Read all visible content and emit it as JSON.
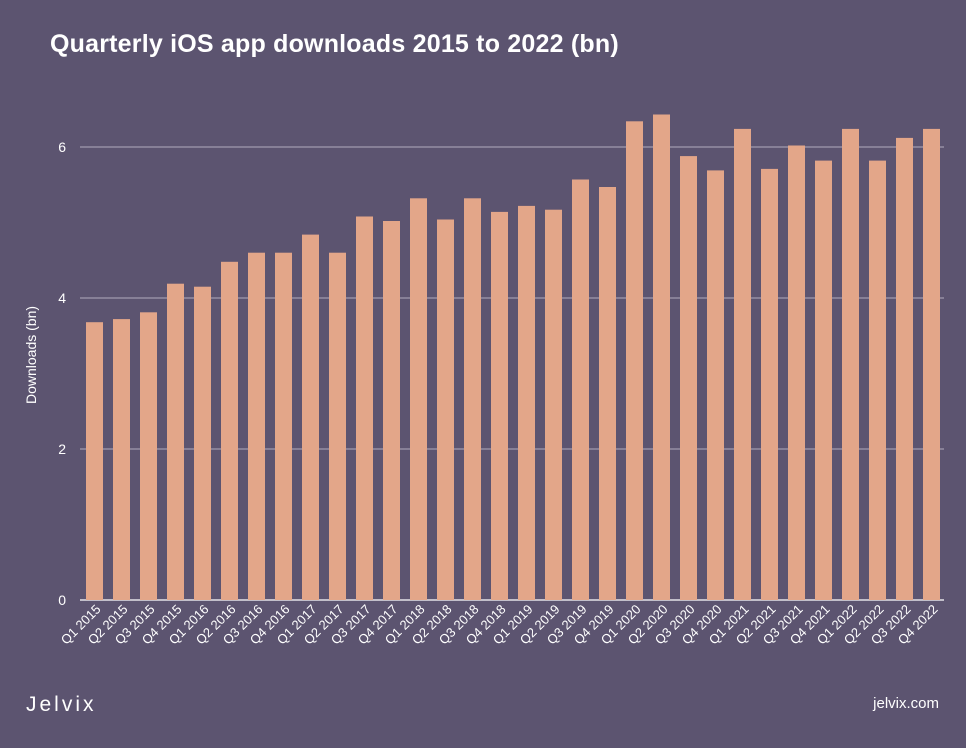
{
  "title": "Quarterly iOS app downloads 2015 to 2022 (bn)",
  "footer": {
    "brand": "Jelvix",
    "website": "jelvix.com"
  },
  "colors": {
    "background": "#5c5470",
    "bar": "#e3a689",
    "grid": "#cfc8d8",
    "text": "#ffffff"
  },
  "chart_data": {
    "type": "bar",
    "title": "Quarterly iOS app downloads 2015 to 2022 (bn)",
    "xlabel": "",
    "ylabel": "Downloads (bn)",
    "ylim": [
      0,
      6.8
    ],
    "yticks": [
      0,
      2,
      4,
      6
    ],
    "grid": true,
    "categories": [
      "Q1 2015",
      "Q2 2015",
      "Q3 2015",
      "Q4 2015",
      "Q1 2016",
      "Q2 2016",
      "Q3 2016",
      "Q4 2016",
      "Q1 2017",
      "Q2 2017",
      "Q3 2017",
      "Q4 2017",
      "Q1 2018",
      "Q2 2018",
      "Q3 2018",
      "Q4 2018",
      "Q1 2019",
      "Q2 2019",
      "Q3 2019",
      "Q4 2019",
      "Q1 2020",
      "Q2 2020",
      "Q3 2020",
      "Q4 2020",
      "Q1 2021",
      "Q2 2021",
      "Q3 2021",
      "Q4 2021",
      "Q1 2022",
      "Q2 2022",
      "Q3 2022",
      "Q4 2022"
    ],
    "values": [
      3.68,
      3.72,
      3.81,
      4.19,
      4.15,
      4.48,
      4.6,
      4.6,
      4.84,
      4.6,
      5.08,
      5.02,
      5.32,
      5.04,
      5.32,
      5.14,
      5.22,
      5.17,
      5.57,
      5.47,
      6.34,
      6.43,
      5.88,
      5.69,
      6.24,
      5.71,
      6.02,
      5.82,
      6.24,
      5.82,
      6.12,
      6.24
    ]
  }
}
